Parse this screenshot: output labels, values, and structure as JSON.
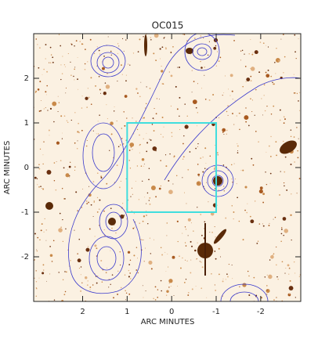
{
  "chart_data": {
    "type": "image",
    "title": "OC015",
    "x_label": "ARC MINUTES",
    "y_label": "ARC MINUTES",
    "xlim": [
      3.1,
      -2.9
    ],
    "ylim": [
      -3.0,
      3.0
    ],
    "xticks": [
      2,
      1,
      0,
      -1,
      -2
    ],
    "yticks": [
      -2,
      -1,
      0,
      1,
      2
    ],
    "region": {
      "x": [
        1,
        -1
      ],
      "y": [
        -1,
        1
      ],
      "color": "#40dede"
    }
  }
}
